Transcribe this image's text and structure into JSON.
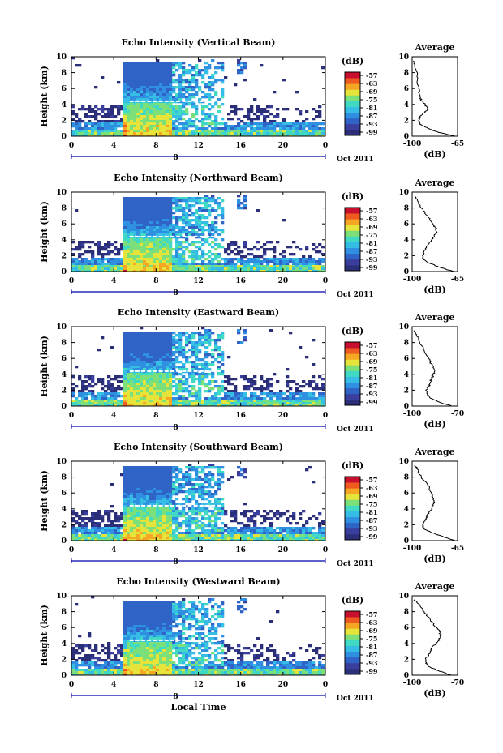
{
  "colors": {
    "scale": [
      "#2b2f7a",
      "#3a3f9e",
      "#2f63c6",
      "#2f8fe0",
      "#35bde6",
      "#3fd9c4",
      "#7be07a",
      "#e6e33a",
      "#f5a623",
      "#ee5a1f",
      "#c8102e"
    ],
    "background": "#ffffff"
  },
  "chart_data": [
    {
      "type": "heatmap",
      "title": "Echo Intensity (Vertical Beam)",
      "ylabel": "Height (km)",
      "xlim": [
        0,
        24
      ],
      "ylim": [
        0,
        10
      ],
      "x_ticks": [
        "0",
        "4",
        "8",
        "12",
        "16",
        "20",
        "0"
      ],
      "y_ticks": [
        "0",
        "2",
        "4",
        "6",
        "8",
        "10"
      ],
      "date_label": "Oct 2011",
      "date_tick": "8",
      "colorbar": {
        "label": "(dB)",
        "ticks": [
          "-57",
          "-63",
          "-69",
          "-75",
          "-81",
          "-87",
          "-93",
          "-99"
        ]
      },
      "average": {
        "title": "Average",
        "xlabel": "(dB)",
        "xticks": [
          "-100",
          "-65"
        ],
        "xlim": [
          -100,
          -65
        ],
        "heights": [
          0,
          0.5,
          1,
          1.5,
          2,
          2.5,
          3,
          3.5,
          4,
          4.5,
          5,
          6,
          7,
          8,
          9,
          9.5
        ],
        "values": [
          -67,
          -80,
          -88,
          -94,
          -95,
          -94,
          -90,
          -88,
          -90,
          -93,
          -94,
          -95,
          -96,
          -96,
          -98,
          -99
        ]
      }
    },
    {
      "type": "heatmap",
      "title": "Echo Intensity (Northward Beam)",
      "ylabel": "Height (km)",
      "xlim": [
        0,
        24
      ],
      "ylim": [
        0,
        10
      ],
      "x_ticks": [
        "0",
        "4",
        "8",
        "12",
        "16",
        "20",
        "0"
      ],
      "y_ticks": [
        "0",
        "2",
        "4",
        "6",
        "8",
        "10"
      ],
      "date_label": "Oct 2011",
      "date_tick": "8",
      "colorbar": {
        "label": "(dB)",
        "ticks": [
          "-57",
          "-63",
          "-69",
          "-75",
          "-81",
          "-87",
          "-93",
          "-99"
        ]
      },
      "average": {
        "title": "Average",
        "xlabel": "(dB)",
        "xticks": [
          "-100",
          "-65"
        ],
        "xlim": [
          -100,
          -65
        ],
        "heights": [
          0,
          0.5,
          1,
          1.5,
          2,
          2.5,
          3,
          3.5,
          4,
          4.5,
          5,
          5.5,
          6,
          7,
          8,
          9,
          9.5
        ],
        "values": [
          -68,
          -78,
          -86,
          -91,
          -92,
          -91,
          -89,
          -87,
          -85,
          -83,
          -81,
          -82,
          -84,
          -88,
          -93,
          -96,
          -98
        ]
      }
    },
    {
      "type": "heatmap",
      "title": "Echo Intensity (Eastward Beam)",
      "ylabel": "Height (km)",
      "xlim": [
        0,
        24
      ],
      "ylim": [
        0,
        10
      ],
      "x_ticks": [
        "0",
        "4",
        "8",
        "12",
        "16",
        "20",
        "0"
      ],
      "y_ticks": [
        "0",
        "2",
        "4",
        "6",
        "8",
        "10"
      ],
      "date_label": "Oct 2011",
      "date_tick": "8",
      "colorbar": {
        "label": "(dB)",
        "ticks": [
          "-57",
          "-63",
          "-69",
          "-75",
          "-81",
          "-87",
          "-93",
          "-99"
        ]
      },
      "average": {
        "title": "Average",
        "xlabel": "(dB)",
        "xticks": [
          "-100",
          "-70"
        ],
        "xlim": [
          -100,
          -70
        ],
        "heights": [
          0,
          0.5,
          1,
          1.5,
          2,
          2.5,
          3,
          3.5,
          4,
          4.5,
          5,
          5.5,
          6,
          7,
          8,
          9,
          9.5
        ],
        "values": [
          -74,
          -82,
          -88,
          -90,
          -91,
          -89,
          -88,
          -87,
          -86,
          -85,
          -86,
          -88,
          -89,
          -92,
          -95,
          -97,
          -99
        ]
      }
    },
    {
      "type": "heatmap",
      "title": "Echo Intensity (Southward Beam)",
      "ylabel": "Height (km)",
      "xlim": [
        0,
        24
      ],
      "ylim": [
        0,
        10
      ],
      "x_ticks": [
        "0",
        "4",
        "8",
        "12",
        "16",
        "20",
        "0"
      ],
      "y_ticks": [
        "0",
        "2",
        "4",
        "6",
        "8",
        "10"
      ],
      "date_label": "Oct 2011",
      "date_tick": "8",
      "colorbar": {
        "label": "(dB)",
        "ticks": [
          "-57",
          "-63",
          "-69",
          "-75",
          "-81",
          "-87",
          "-93",
          "-99"
        ]
      },
      "average": {
        "title": "Average",
        "xlabel": "(dB)",
        "xticks": [
          "-100",
          "-65"
        ],
        "xlim": [
          -100,
          -65
        ],
        "heights": [
          0,
          0.5,
          1,
          1.5,
          2,
          2.5,
          3,
          3.5,
          4,
          4.5,
          5,
          5.5,
          6,
          7,
          8,
          9,
          9.5
        ],
        "values": [
          -67,
          -76,
          -85,
          -91,
          -92,
          -90,
          -89,
          -87,
          -85,
          -84,
          -83,
          -84,
          -85,
          -88,
          -93,
          -96,
          -98
        ]
      }
    },
    {
      "type": "heatmap",
      "title": "Echo Intensity (Westward Beam)",
      "ylabel": "Height (km)",
      "xlabel": "Local Time",
      "xlim": [
        0,
        24
      ],
      "ylim": [
        0,
        10
      ],
      "x_ticks": [
        "0",
        "4",
        "8",
        "12",
        "16",
        "20",
        "0"
      ],
      "y_ticks": [
        "0",
        "2",
        "4",
        "6",
        "8",
        "10"
      ],
      "date_label": "Oct 2011",
      "date_tick": "8",
      "colorbar": {
        "label": "(dB)",
        "ticks": [
          "-57",
          "-63",
          "-69",
          "-75",
          "-81",
          "-87",
          "-93",
          "-99"
        ]
      },
      "average": {
        "title": "Average",
        "xlabel": "(dB)",
        "xticks": [
          "-100",
          "-70"
        ],
        "xlim": [
          -100,
          -70
        ],
        "heights": [
          0,
          0.5,
          1,
          1.5,
          2,
          2.5,
          3,
          3.5,
          4,
          4.5,
          5,
          5.5,
          6,
          7,
          8,
          9,
          9.5
        ],
        "values": [
          -74,
          -82,
          -88,
          -91,
          -91,
          -89,
          -88,
          -87,
          -84,
          -82,
          -81,
          -82,
          -84,
          -88,
          -92,
          -96,
          -99
        ]
      }
    }
  ]
}
